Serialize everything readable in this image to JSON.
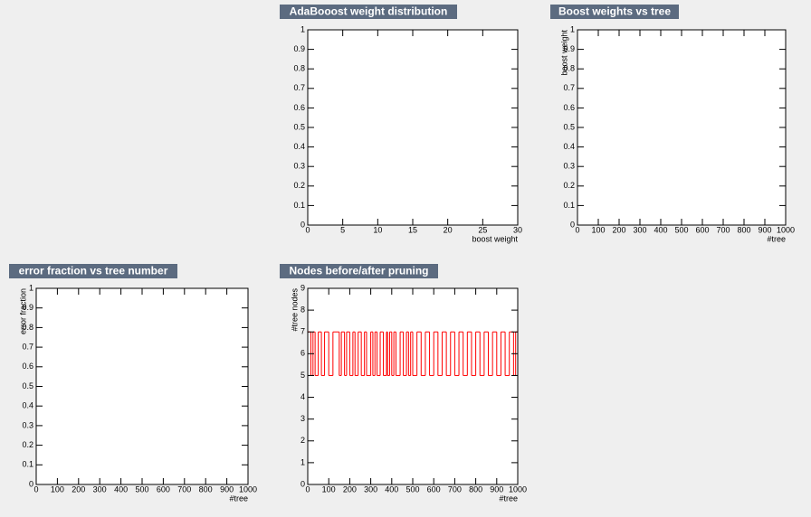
{
  "chart_data": [
    {
      "type": "line",
      "title": "AdaBooost weight distribution",
      "xlabel": "boost weight",
      "xlim": [
        0,
        30
      ],
      "xticks": [
        0,
        5,
        10,
        15,
        20,
        25,
        30
      ],
      "ylim": [
        0,
        1
      ],
      "yticks": [
        0,
        0.1,
        0.2,
        0.3,
        0.4,
        0.5,
        0.6,
        0.7,
        0.8,
        0.9,
        1
      ],
      "series": []
    },
    {
      "type": "line",
      "title": "Boost weights vs tree",
      "xlabel": "#tree",
      "ylabel": "boost weight",
      "xlim": [
        0,
        1000
      ],
      "xticks": [
        0,
        100,
        200,
        300,
        400,
        500,
        600,
        700,
        800,
        900,
        1000
      ],
      "ylim": [
        0,
        1
      ],
      "yticks": [
        0,
        0.1,
        0.2,
        0.3,
        0.4,
        0.5,
        0.6,
        0.7,
        0.8,
        0.9,
        1
      ],
      "series": []
    },
    {
      "type": "line",
      "title": "error fraction vs tree number",
      "xlabel": "#tree",
      "ylabel": "error fraction",
      "xlim": [
        0,
        1000
      ],
      "xticks": [
        0,
        100,
        200,
        300,
        400,
        500,
        600,
        700,
        800,
        900,
        1000
      ],
      "ylim": [
        0,
        1
      ],
      "yticks": [
        0,
        0.1,
        0.2,
        0.3,
        0.4,
        0.5,
        0.6,
        0.7,
        0.8,
        0.9,
        1
      ],
      "series": []
    },
    {
      "type": "step",
      "title": "Nodes before/after pruning",
      "xlabel": "#tree",
      "ylabel": "#tree nodes",
      "xlim": [
        0,
        1000
      ],
      "xticks": [
        0,
        100,
        200,
        300,
        400,
        500,
        600,
        700,
        800,
        900,
        1000
      ],
      "ylim": [
        0,
        9
      ],
      "yticks": [
        0,
        1,
        2,
        3,
        4,
        5,
        6,
        7,
        8,
        9
      ],
      "series": [
        {
          "color": "#ff0000",
          "x": [
            0,
            15,
            25,
            35,
            50,
            65,
            80,
            100,
            120,
            150,
            160,
            175,
            185,
            200,
            215,
            225,
            240,
            255,
            270,
            280,
            300,
            310,
            320,
            330,
            345,
            360,
            375,
            380,
            390,
            400,
            410,
            420,
            440,
            455,
            470,
            480,
            490,
            500,
            520,
            540,
            560,
            580,
            600,
            620,
            640,
            660,
            680,
            700,
            720,
            740,
            760,
            780,
            800,
            820,
            840,
            860,
            880,
            900,
            920,
            940,
            960,
            980,
            990
          ],
          "values": [
            7,
            5,
            7,
            5,
            7,
            5,
            7,
            5,
            7,
            5,
            7,
            5,
            7,
            5,
            7,
            5,
            7,
            5,
            7,
            5,
            7,
            5,
            7,
            5,
            7,
            5,
            7,
            5,
            7,
            5,
            7,
            5,
            7,
            5,
            7,
            5,
            7,
            5,
            7,
            5,
            7,
            5,
            7,
            5,
            7,
            5,
            7,
            5,
            7,
            5,
            7,
            5,
            7,
            5,
            7,
            5,
            7,
            5,
            7,
            5,
            7,
            5,
            7
          ]
        }
      ]
    }
  ]
}
